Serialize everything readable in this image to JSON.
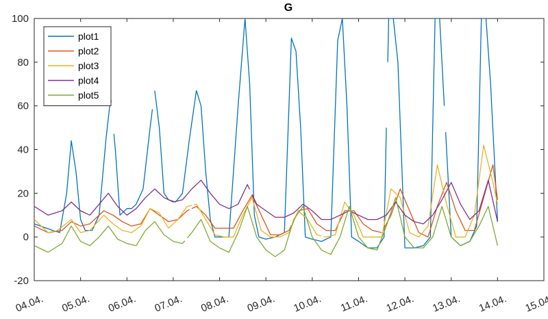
{
  "chart_data": {
    "type": "line",
    "title": "G",
    "xlabel": "",
    "ylabel": "",
    "xlim": [
      0,
      11
    ],
    "ylim": [
      -20,
      100
    ],
    "yticks": [
      -20,
      0,
      20,
      40,
      60,
      80,
      100
    ],
    "xtick_labels": [
      "04.04.",
      "05.04.",
      "06.04.",
      "07.04.",
      "08.04.",
      "09.04.",
      "10.04.",
      "11.04.",
      "12.04.",
      "13.04.",
      "14.04.",
      "15.04."
    ],
    "legend_position": "top-left",
    "colors": {
      "plot1": "#0072BD",
      "plot2": "#D95319",
      "plot3": "#EDB120",
      "plot4": "#7E2F8E",
      "plot5": "#77AC30"
    },
    "series": [
      {
        "name": "plot1",
        "color": "#0072BD",
        "x": [
          0,
          0.4,
          0.55,
          0.7,
          0.8,
          0.9,
          1.0,
          1.1,
          1.25,
          1.4,
          1.55,
          1.65,
          1.75,
          1.85,
          2.0,
          2.1,
          2.2,
          2.35,
          2.5,
          2.6,
          2.7,
          2.8,
          2.9,
          3.05,
          3.2,
          3.35,
          3.5,
          3.6,
          3.7,
          3.8,
          3.9,
          4.0,
          4.2,
          4.4,
          4.55,
          4.65,
          4.75,
          4.85,
          5.0,
          5.2,
          5.4,
          5.55,
          5.65,
          5.75,
          5.85,
          6.0,
          6.2,
          6.4,
          6.55,
          6.65,
          6.75,
          6.85,
          7.0,
          7.2,
          7.4,
          7.55,
          7.65,
          7.75,
          7.85,
          8.0,
          8.2,
          8.4,
          8.55,
          8.65,
          8.75,
          8.85,
          9.0,
          9.2,
          9.4,
          9.55,
          9.65,
          9.75,
          9.85,
          10.0
        ],
        "y": [
          6,
          3,
          2,
          20,
          44,
          30,
          8,
          3,
          3,
          10,
          45,
          64,
          40,
          10,
          13,
          13,
          15,
          22,
          50,
          67,
          50,
          20,
          17,
          16,
          20,
          45,
          67,
          60,
          30,
          8,
          0,
          0,
          0,
          60,
          100,
          70,
          10,
          0,
          -1,
          0,
          2,
          91,
          85,
          50,
          0,
          -1,
          -2,
          0,
          90,
          100,
          60,
          0,
          -2,
          -5,
          -5,
          0,
          100,
          100,
          80,
          -5,
          -5,
          -4,
          0,
          100,
          100,
          60,
          0,
          -4,
          -2,
          5,
          100,
          100,
          70,
          7
        ]
      },
      {
        "name": "plot2",
        "color": "#D95319",
        "x": [
          0,
          0.3,
          0.6,
          0.8,
          1.0,
          1.2,
          1.5,
          1.7,
          1.9,
          2.1,
          2.3,
          2.5,
          2.7,
          2.9,
          3.1,
          3.3,
          3.5,
          3.7,
          3.9,
          4.1,
          4.3,
          4.5,
          4.7,
          4.9,
          5.1,
          5.3,
          5.5,
          5.7,
          5.9,
          6.1,
          6.3,
          6.5,
          6.7,
          6.9,
          7.1,
          7.3,
          7.5,
          7.7,
          7.9,
          8.1,
          8.3,
          8.5,
          8.7,
          8.9,
          9.1,
          9.3,
          9.5,
          9.7,
          9.9,
          10.0
        ],
        "y": [
          5,
          2,
          3,
          7,
          5,
          6,
          12,
          10,
          7,
          5,
          6,
          13,
          10,
          7,
          8,
          12,
          14,
          10,
          4,
          4,
          4,
          12,
          19,
          10,
          1,
          1,
          3,
          12,
          13,
          6,
          3,
          3,
          12,
          12,
          6,
          3,
          2,
          10,
          22,
          12,
          2,
          0,
          14,
          25,
          12,
          3,
          3,
          18,
          33,
          17
        ]
      },
      {
        "name": "plot3",
        "color": "#EDB120",
        "x": [
          0,
          0.3,
          0.5,
          0.8,
          1.0,
          1.2,
          1.5,
          1.7,
          1.9,
          2.1,
          2.3,
          2.5,
          2.7,
          2.9,
          3.1,
          3.3,
          3.5,
          3.7,
          3.9,
          4.1,
          4.3,
          4.5,
          4.7,
          4.9,
          5.1,
          5.3,
          5.5,
          5.7,
          5.9,
          6.1,
          6.3,
          6.5,
          6.7,
          6.9,
          7.1,
          7.3,
          7.5,
          7.7,
          7.9,
          8.1,
          8.3,
          8.5,
          8.7,
          8.9,
          9.1,
          9.3,
          9.5,
          9.7,
          9.9,
          10.0
        ],
        "y": [
          8,
          2,
          3,
          8,
          2,
          3,
          10,
          6,
          3,
          2,
          5,
          13,
          11,
          4,
          8,
          14,
          15,
          8,
          1,
          0,
          0,
          10,
          18,
          3,
          0,
          0,
          2,
          12,
          8,
          1,
          0,
          1,
          16,
          10,
          0,
          0,
          0,
          22,
          18,
          2,
          0,
          5,
          33,
          15,
          0,
          0,
          10,
          42,
          25,
          15
        ]
      },
      {
        "name": "plot4",
        "color": "#7E2F8E",
        "x": [
          0,
          0.3,
          0.6,
          0.8,
          1.0,
          1.2,
          1.4,
          1.6,
          1.8,
          2.0,
          2.2,
          2.4,
          2.6,
          2.8,
          3.0,
          3.2,
          3.4,
          3.6,
          3.8,
          4.0,
          4.2,
          4.4,
          4.6,
          4.8,
          5.0,
          5.2,
          5.4,
          5.6,
          5.8,
          6.0,
          6.2,
          6.4,
          6.6,
          6.8,
          7.0,
          7.2,
          7.4,
          7.6,
          7.8,
          8.0,
          8.2,
          8.4,
          8.6,
          8.8,
          9.0,
          9.2,
          9.4,
          9.6,
          9.8,
          10.0
        ],
        "y": [
          14,
          10,
          12,
          16,
          12,
          10,
          15,
          20,
          14,
          10,
          13,
          18,
          22,
          18,
          16,
          17,
          22,
          26,
          20,
          15,
          13,
          15,
          24,
          15,
          12,
          9,
          9,
          11,
          15,
          12,
          8,
          8,
          10,
          12,
          10,
          8,
          8,
          10,
          16,
          10,
          7,
          6,
          10,
          17,
          25,
          15,
          8,
          12,
          26,
          7
        ]
      },
      {
        "name": "plot5",
        "color": "#77AC30",
        "x": [
          0,
          0.3,
          0.6,
          0.8,
          1.0,
          1.2,
          1.4,
          1.6,
          1.8,
          2.0,
          2.2,
          2.4,
          2.6,
          2.8,
          3.0,
          3.2,
          3.4,
          3.6,
          3.8,
          4.0,
          4.2,
          4.4,
          4.6,
          4.8,
          5.0,
          5.2,
          5.4,
          5.6,
          5.8,
          6.0,
          6.2,
          6.4,
          6.6,
          6.8,
          7.0,
          7.2,
          7.4,
          7.6,
          7.8,
          8.0,
          8.2,
          8.4,
          8.6,
          8.8,
          9.0,
          9.2,
          9.4,
          9.6,
          9.8,
          10.0
        ],
        "y": [
          -4,
          -7,
          -3,
          5,
          -2,
          -4,
          0,
          5,
          -1,
          -3,
          -4,
          3,
          7,
          1,
          -2,
          -3,
          2,
          8,
          -2,
          -5,
          -7,
          2,
          14,
          0,
          -6,
          -9,
          -6,
          8,
          14,
          0,
          -6,
          -8,
          0,
          14,
          0,
          -5,
          -6,
          5,
          18,
          0,
          -5,
          -5,
          0,
          14,
          0,
          -4,
          -2,
          5,
          14,
          -4
        ]
      }
    ],
    "breaks": {
      "plot1": [
        [
          1.66,
          1.72
        ],
        [
          2.55,
          2.62
        ],
        [
          7.6,
          7.63
        ],
        [
          8.85,
          8.88
        ],
        [
          9.0,
          9.03
        ]
      ],
      "plot2": [
        [
          3.35,
          3.4
        ],
        [
          5.55,
          5.6
        ],
        [
          7.5,
          7.55
        ]
      ],
      "plot3": [
        [
          3.4,
          3.45
        ],
        [
          6.2,
          6.25
        ]
      ],
      "plot4": [
        [
          4.65,
          4.7
        ],
        [
          6.8,
          6.85
        ]
      ],
      "plot5": [
        [
          3.25,
          3.3
        ]
      ]
    }
  }
}
